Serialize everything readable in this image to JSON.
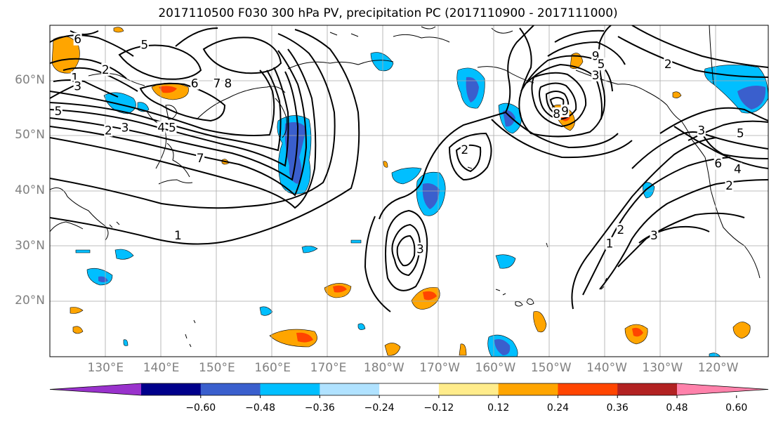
{
  "title": "2017110500 F030 300 hPa PV, precipitation PC (2017110900 - 2017111000)",
  "map": {
    "projection": "cylindrical",
    "lon_range": [
      120,
      249
    ],
    "lat_range": [
      10,
      70
    ],
    "gridlines": true,
    "lat_ticks": [
      {
        "lat": 60,
        "label": "60°N"
      },
      {
        "lat": 50,
        "label": "50°N"
      },
      {
        "lat": 40,
        "label": "40°N"
      },
      {
        "lat": 30,
        "label": "30°N"
      },
      {
        "lat": 20,
        "label": "20°N"
      }
    ],
    "lon_ticks": [
      {
        "lon": 130,
        "label": "130°E"
      },
      {
        "lon": 140,
        "label": "140°E"
      },
      {
        "lon": 150,
        "label": "150°E"
      },
      {
        "lon": 160,
        "label": "160°E"
      },
      {
        "lon": 170,
        "label": "170°E"
      },
      {
        "lon": 180,
        "label": "180°W"
      },
      {
        "lon": 190,
        "label": "170°W"
      },
      {
        "lon": 200,
        "label": "160°W"
      },
      {
        "lon": 210,
        "label": "150°W"
      },
      {
        "lon": 220,
        "label": "140°W"
      },
      {
        "lon": 230,
        "label": "130°W"
      },
      {
        "lon": 240,
        "label": "120°W"
      }
    ],
    "pv_contour_labels": [
      {
        "lon": 125,
        "lat": 67.5,
        "text": "6"
      },
      {
        "lon": 137,
        "lat": 66.5,
        "text": "5"
      },
      {
        "lon": 124.5,
        "lat": 60.5,
        "text": "1"
      },
      {
        "lon": 125,
        "lat": 59,
        "text": "3"
      },
      {
        "lon": 130,
        "lat": 62,
        "text": "2"
      },
      {
        "lon": 121.5,
        "lat": 54.5,
        "text": "5"
      },
      {
        "lon": 146,
        "lat": 59.5,
        "text": "6"
      },
      {
        "lon": 150,
        "lat": 59.5,
        "text": "7"
      },
      {
        "lon": 152,
        "lat": 59.5,
        "text": "8"
      },
      {
        "lon": 130.5,
        "lat": 51,
        "text": "2"
      },
      {
        "lon": 133.5,
        "lat": 51.5,
        "text": "3"
      },
      {
        "lon": 142,
        "lat": 51.5,
        "text": "5"
      },
      {
        "lon": 140,
        "lat": 51.5,
        "text": "4"
      },
      {
        "lon": 147,
        "lat": 46,
        "text": "7"
      },
      {
        "lon": 143,
        "lat": 32,
        "text": "1"
      },
      {
        "lon": 211,
        "lat": 54,
        "text": "8"
      },
      {
        "lon": 212.5,
        "lat": 54.5,
        "text": "9"
      },
      {
        "lon": 218,
        "lat": 64.5,
        "text": "9"
      },
      {
        "lon": 219,
        "lat": 63,
        "text": "5"
      },
      {
        "lon": 218,
        "lat": 61,
        "text": "3"
      },
      {
        "lon": 231,
        "lat": 63,
        "text": "2"
      },
      {
        "lon": 237,
        "lat": 51,
        "text": "3"
      },
      {
        "lon": 244,
        "lat": 50.5,
        "text": "5"
      },
      {
        "lon": 240,
        "lat": 45,
        "text": "6"
      },
      {
        "lon": 243.5,
        "lat": 44,
        "text": "4"
      },
      {
        "lon": 242,
        "lat": 41,
        "text": "2"
      },
      {
        "lon": 222.5,
        "lat": 33,
        "text": "2"
      },
      {
        "lon": 220.5,
        "lat": 30.5,
        "text": "1"
      },
      {
        "lon": 228.5,
        "lat": 32,
        "text": "3"
      },
      {
        "lon": 186.5,
        "lat": 29.5,
        "text": "3"
      },
      {
        "lon": 194.5,
        "lat": 47.5,
        "text": "2"
      }
    ]
  },
  "colorbar": {
    "levels": [
      -0.6,
      -0.48,
      -0.36,
      -0.24,
      -0.12,
      0.12,
      0.24,
      0.36,
      0.48,
      0.6
    ],
    "tick_labels": [
      "−0.60",
      "−0.48",
      "−0.36",
      "−0.24",
      "−0.12",
      "0.12",
      "0.24",
      "0.36",
      "0.48",
      "0.60"
    ],
    "colors": [
      "#9932cc",
      "#00008b",
      "#3a5fcd",
      "#00bfff",
      "#b0e2ff",
      "#ffffff",
      "#ffec8b",
      "#ffa500",
      "#ff4500",
      "#b22222",
      "#ff82ab"
    ]
  }
}
